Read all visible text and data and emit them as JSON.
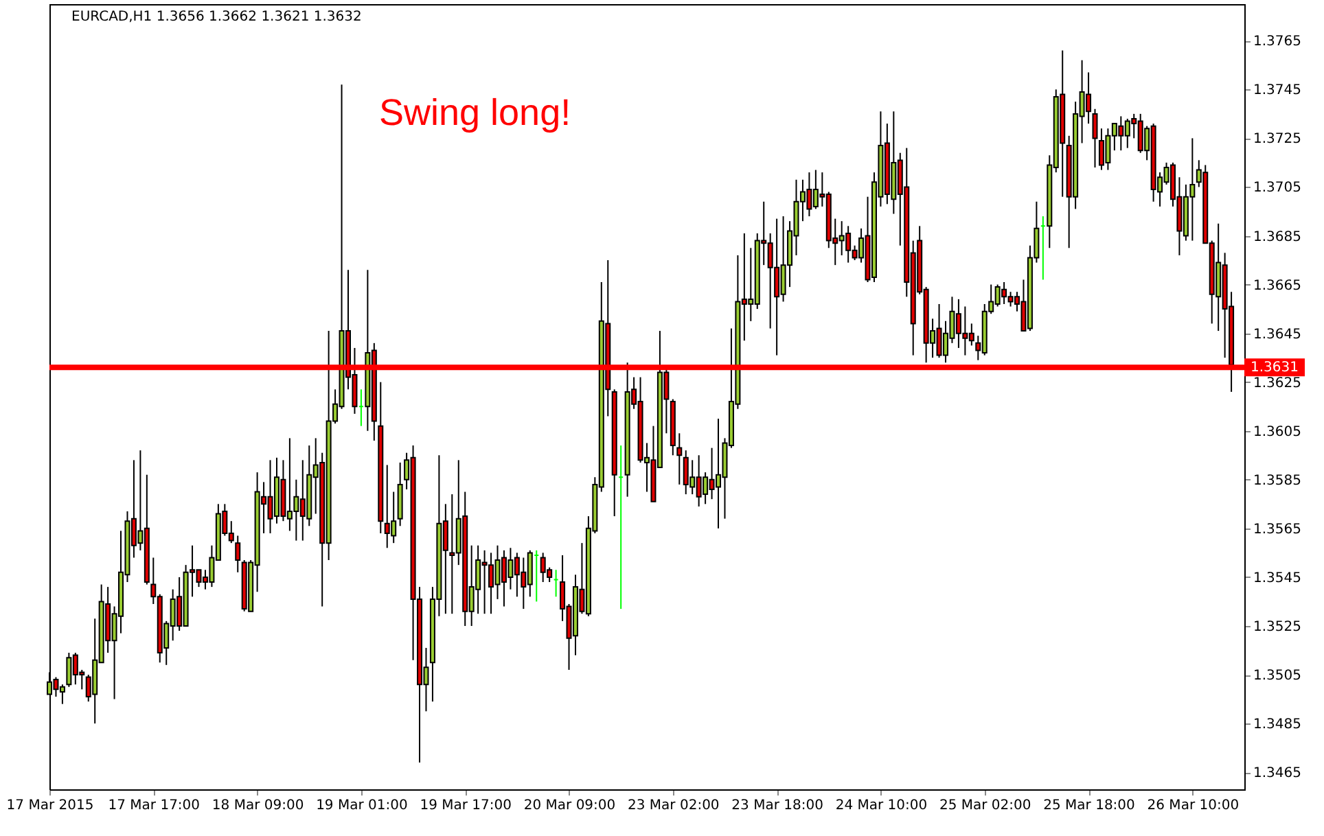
{
  "chart_data": {
    "type": "candlestick",
    "title": "EURCAD,H1  1.3656 1.3662 1.3621 1.3632",
    "categories": [
      "17 Mar 2015",
      null,
      null,
      null,
      null,
      null,
      null,
      null,
      null,
      null,
      null,
      null,
      null,
      null,
      null,
      null,
      "17 Mar 17:00",
      null,
      null,
      null,
      null,
      null,
      null,
      null,
      null,
      null,
      null,
      null,
      null,
      null,
      null,
      null,
      "18 Mar 09:00",
      null,
      null,
      null,
      null,
      null,
      null,
      null,
      null,
      null,
      null,
      null,
      null,
      null,
      null,
      null,
      "19 Mar 01:00",
      null,
      null,
      null,
      null,
      null,
      null,
      null,
      null,
      null,
      null,
      null,
      null,
      null,
      null,
      null,
      "19 Mar 17:00",
      null,
      null,
      null,
      null,
      null,
      null,
      null,
      null,
      null,
      null,
      null,
      null,
      null,
      null,
      null,
      "20 Mar 09:00",
      null,
      null,
      null,
      null,
      null,
      null,
      null,
      null,
      null,
      null,
      null,
      null,
      null,
      null,
      null,
      "23 Mar 02:00",
      null,
      null,
      null,
      null,
      null,
      null,
      null,
      null,
      null,
      null,
      null,
      null,
      null,
      null,
      null,
      "23 Mar 18:00",
      null,
      null,
      null,
      null,
      null,
      null,
      null,
      null,
      null,
      null,
      null,
      null,
      null,
      null,
      null,
      "24 Mar 10:00",
      null,
      null,
      null,
      null,
      null,
      null,
      null,
      null,
      null,
      null,
      null,
      null,
      null,
      null,
      null,
      "25 Mar 02:00",
      null,
      null,
      null,
      null,
      null,
      null,
      null,
      null,
      null,
      null,
      null,
      null,
      null,
      null,
      null,
      "25 Mar 18:00",
      null,
      null,
      null,
      null,
      null,
      null,
      null,
      null,
      null,
      null,
      null,
      null,
      null,
      null,
      null,
      "26 Mar 10:00",
      null,
      null,
      null,
      null,
      null,
      null
    ],
    "ohlc": [
      [
        1.3497,
        1.3506,
        1.3497,
        1.3502
      ],
      [
        1.3503,
        1.3504,
        1.3496,
        1.3499
      ],
      [
        1.3498,
        1.3501,
        1.3493,
        1.35
      ],
      [
        1.3501,
        1.3514,
        1.35,
        1.3512
      ],
      [
        1.3513,
        1.3514,
        1.3501,
        1.3505
      ],
      [
        1.3506,
        1.3507,
        1.3499,
        1.3505
      ],
      [
        1.3504,
        1.3505,
        1.3494,
        1.3496
      ],
      [
        1.3497,
        1.3528,
        1.3485,
        1.3511
      ],
      [
        1.351,
        1.3542,
        1.351,
        1.3535
      ],
      [
        1.3534,
        1.3541,
        1.3514,
        1.3519
      ],
      [
        1.3519,
        1.3533,
        1.3495,
        1.353
      ],
      [
        1.3529,
        1.3564,
        1.3522,
        1.3547
      ],
      [
        1.3546,
        1.3572,
        1.3543,
        1.3568
      ],
      [
        1.3569,
        1.3593,
        1.3553,
        1.3558
      ],
      [
        1.3559,
        1.3597,
        1.3556,
        1.3564
      ],
      [
        1.3565,
        1.3587,
        1.3542,
        1.3543
      ],
      [
        1.3542,
        1.3553,
        1.3534,
        1.3537
      ],
      [
        1.3537,
        1.3538,
        1.351,
        1.3514
      ],
      [
        1.3516,
        1.3527,
        1.3509,
        1.3526
      ],
      [
        1.3525,
        1.354,
        1.3519,
        1.3536
      ],
      [
        1.3537,
        1.3545,
        1.3523,
        1.3525
      ],
      [
        1.3525,
        1.355,
        1.3525,
        1.3547
      ],
      [
        1.3548,
        1.3558,
        1.3537,
        1.3547
      ],
      [
        1.3548,
        1.3548,
        1.3541,
        1.3543
      ],
      [
        1.3545,
        1.3548,
        1.354,
        1.3543
      ],
      [
        1.3543,
        1.3558,
        1.3541,
        1.3553
      ],
      [
        1.3552,
        1.3575,
        1.3552,
        1.3571
      ],
      [
        1.3572,
        1.3575,
        1.3562,
        1.3563
      ],
      [
        1.3563,
        1.3568,
        1.3559,
        1.356
      ],
      [
        1.3559,
        1.3562,
        1.3547,
        1.3552
      ],
      [
        1.3551,
        1.3552,
        1.3531,
        1.3532
      ],
      [
        1.3531,
        1.3552,
        1.3531,
        1.3551
      ],
      [
        1.355,
        1.3588,
        1.3539,
        1.358
      ],
      [
        1.3578,
        1.3584,
        1.3563,
        1.3575
      ],
      [
        1.3578,
        1.3593,
        1.3563,
        1.3569
      ],
      [
        1.357,
        1.3594,
        1.3567,
        1.3586
      ],
      [
        1.3585,
        1.3593,
        1.3568,
        1.357
      ],
      [
        1.3569,
        1.3602,
        1.3564,
        1.3572
      ],
      [
        1.3572,
        1.3585,
        1.356,
        1.3578
      ],
      [
        1.3577,
        1.3593,
        1.356,
        1.357
      ],
      [
        1.3569,
        1.3599,
        1.3566,
        1.3587
      ],
      [
        1.3586,
        1.3602,
        1.3571,
        1.3591
      ],
      [
        1.3592,
        1.3596,
        1.3533,
        1.3559
      ],
      [
        1.3559,
        1.3646,
        1.3552,
        1.3609
      ],
      [
        1.3609,
        1.3622,
        1.3608,
        1.3616
      ],
      [
        1.3615,
        1.3747,
        1.3614,
        1.3646
      ],
      [
        1.3646,
        1.3671,
        1.3622,
        1.3627
      ],
      [
        1.3628,
        1.3639,
        1.3612,
        1.3615
      ],
      [
        1.3615,
        1.3622,
        1.3607,
        1.3615
      ],
      [
        1.3615,
        1.3671,
        1.3605,
        1.3637
      ],
      [
        1.3638,
        1.3641,
        1.3601,
        1.3609
      ],
      [
        1.3607,
        1.3625,
        1.3563,
        1.3568
      ],
      [
        1.3567,
        1.3591,
        1.3557,
        1.3563
      ],
      [
        1.3562,
        1.358,
        1.3559,
        1.3568
      ],
      [
        1.3569,
        1.3592,
        1.3566,
        1.3583
      ],
      [
        1.3585,
        1.3596,
        1.3581,
        1.3593
      ],
      [
        1.3594,
        1.3599,
        1.3511,
        1.3536
      ],
      [
        1.3536,
        1.3541,
        1.3469,
        1.3501
      ],
      [
        1.3501,
        1.3516,
        1.349,
        1.3508
      ],
      [
        1.351,
        1.3541,
        1.3494,
        1.3536
      ],
      [
        1.3536,
        1.3595,
        1.3529,
        1.3567
      ],
      [
        1.3568,
        1.3575,
        1.353,
        1.3556
      ],
      [
        1.3555,
        1.3579,
        1.353,
        1.3554
      ],
      [
        1.3555,
        1.3593,
        1.355,
        1.3569
      ],
      [
        1.357,
        1.358,
        1.3525,
        1.3531
      ],
      [
        1.3531,
        1.3558,
        1.3525,
        1.3541
      ],
      [
        1.354,
        1.3558,
        1.353,
        1.3552
      ],
      [
        1.3551,
        1.3556,
        1.353,
        1.355
      ],
      [
        1.355,
        1.3555,
        1.353,
        1.3541
      ],
      [
        1.3542,
        1.3558,
        1.3536,
        1.3552
      ],
      [
        1.3553,
        1.3556,
        1.3533,
        1.3543
      ],
      [
        1.3545,
        1.3557,
        1.354,
        1.3552
      ],
      [
        1.3553,
        1.3555,
        1.3537,
        1.3546
      ],
      [
        1.3547,
        1.3553,
        1.3532,
        1.3541
      ],
      [
        1.3542,
        1.3556,
        1.3537,
        1.3555
      ],
      [
        1.3554,
        1.3556,
        1.3535,
        1.3554
      ],
      [
        1.3553,
        1.3555,
        1.3543,
        1.3547
      ],
      [
        1.3548,
        1.3549,
        1.3543,
        1.3545
      ],
      [
        1.3544,
        1.3548,
        1.3537,
        1.3544
      ],
      [
        1.3543,
        1.3554,
        1.3527,
        1.3532
      ],
      [
        1.3533,
        1.3534,
        1.3507,
        1.352
      ],
      [
        1.3521,
        1.3546,
        1.3513,
        1.3541
      ],
      [
        1.354,
        1.3559,
        1.353,
        1.3531
      ],
      [
        1.353,
        1.357,
        1.3529,
        1.3565
      ],
      [
        1.3564,
        1.3586,
        1.3563,
        1.3583
      ],
      [
        1.3582,
        1.3666,
        1.358,
        1.365
      ],
      [
        1.3649,
        1.3675,
        1.3611,
        1.3622
      ],
      [
        1.3621,
        1.3622,
        1.357,
        1.3587
      ],
      [
        1.3586,
        1.3599,
        1.3532,
        1.3586
      ],
      [
        1.3587,
        1.3633,
        1.3578,
        1.3621
      ],
      [
        1.3622,
        1.3627,
        1.3614,
        1.3616
      ],
      [
        1.3617,
        1.3627,
        1.3592,
        1.3593
      ],
      [
        1.3592,
        1.36,
        1.358,
        1.3594
      ],
      [
        1.3593,
        1.3607,
        1.3576,
        1.3576
      ],
      [
        1.359,
        1.3646,
        1.359,
        1.3629
      ],
      [
        1.3629,
        1.363,
        1.3604,
        1.3618
      ],
      [
        1.3617,
        1.3618,
        1.3595,
        1.3599
      ],
      [
        1.3598,
        1.3604,
        1.3583,
        1.3595
      ],
      [
        1.3594,
        1.3597,
        1.3579,
        1.3583
      ],
      [
        1.3582,
        1.3593,
        1.3579,
        1.3586
      ],
      [
        1.3586,
        1.3595,
        1.3574,
        1.3578
      ],
      [
        1.3579,
        1.3588,
        1.3575,
        1.3586
      ],
      [
        1.3585,
        1.3598,
        1.3577,
        1.3581
      ],
      [
        1.3582,
        1.361,
        1.3565,
        1.3587
      ],
      [
        1.3586,
        1.3602,
        1.3569,
        1.36
      ],
      [
        1.3599,
        1.3647,
        1.3598,
        1.3617
      ],
      [
        1.3616,
        1.3677,
        1.3614,
        1.3658
      ],
      [
        1.3659,
        1.3686,
        1.3642,
        1.3657
      ],
      [
        1.3657,
        1.368,
        1.365,
        1.3659
      ],
      [
        1.3657,
        1.3686,
        1.3655,
        1.3683
      ],
      [
        1.3683,
        1.3699,
        1.3673,
        1.3682
      ],
      [
        1.3682,
        1.3686,
        1.3647,
        1.3672
      ],
      [
        1.3672,
        1.3692,
        1.3636,
        1.366
      ],
      [
        1.3661,
        1.3693,
        1.3658,
        1.3673
      ],
      [
        1.3673,
        1.3691,
        1.3664,
        1.3687
      ],
      [
        1.3685,
        1.3708,
        1.3677,
        1.3699
      ],
      [
        1.3699,
        1.3708,
        1.3691,
        1.3703
      ],
      [
        1.3704,
        1.3711,
        1.3693,
        1.3696
      ],
      [
        1.3697,
        1.3712,
        1.3696,
        1.3704
      ],
      [
        1.3702,
        1.3711,
        1.3697,
        1.3701
      ],
      [
        1.3702,
        1.3703,
        1.368,
        1.3683
      ],
      [
        1.3684,
        1.3692,
        1.3673,
        1.3682
      ],
      [
        1.3683,
        1.3691,
        1.3677,
        1.3685
      ],
      [
        1.3686,
        1.3689,
        1.3674,
        1.3679
      ],
      [
        1.3679,
        1.3681,
        1.3675,
        1.3676
      ],
      [
        1.3676,
        1.3688,
        1.3674,
        1.3684
      ],
      [
        1.3685,
        1.3701,
        1.3666,
        1.3667
      ],
      [
        1.3668,
        1.3711,
        1.3666,
        1.3707
      ],
      [
        1.3701,
        1.3736,
        1.3697,
        1.3722
      ],
      [
        1.3723,
        1.3731,
        1.3698,
        1.3702
      ],
      [
        1.37,
        1.3736,
        1.3694,
        1.3715
      ],
      [
        1.3716,
        1.3719,
        1.3681,
        1.3702
      ],
      [
        1.3705,
        1.3721,
        1.366,
        1.3666
      ],
      [
        1.3678,
        1.3683,
        1.3636,
        1.3649
      ],
      [
        1.3683,
        1.3689,
        1.3661,
        1.3662
      ],
      [
        1.3663,
        1.3664,
        1.3633,
        1.3641
      ],
      [
        1.3641,
        1.3651,
        1.3635,
        1.3646
      ],
      [
        1.3647,
        1.3657,
        1.3635,
        1.3636
      ],
      [
        1.3636,
        1.365,
        1.3633,
        1.3645
      ],
      [
        1.3643,
        1.366,
        1.3641,
        1.3654
      ],
      [
        1.3653,
        1.3659,
        1.3639,
        1.3645
      ],
      [
        1.3645,
        1.3656,
        1.3636,
        1.3643
      ],
      [
        1.3645,
        1.3649,
        1.364,
        1.3642
      ],
      [
        1.3641,
        1.3644,
        1.3634,
        1.3638
      ],
      [
        1.3637,
        1.3657,
        1.3636,
        1.3654
      ],
      [
        1.3654,
        1.3665,
        1.3653,
        1.3658
      ],
      [
        1.3657,
        1.3665,
        1.3656,
        1.3664
      ],
      [
        1.3663,
        1.3666,
        1.3657,
        1.366
      ],
      [
        1.366,
        1.3662,
        1.3656,
        1.3658
      ],
      [
        1.366,
        1.3662,
        1.3654,
        1.3657
      ],
      [
        1.3658,
        1.3667,
        1.3646,
        1.3646
      ],
      [
        1.3647,
        1.3681,
        1.3646,
        1.3676
      ],
      [
        1.3676,
        1.3699,
        1.3674,
        1.3688
      ],
      [
        1.3689,
        1.3693,
        1.3667,
        1.3689
      ],
      [
        1.3689,
        1.3718,
        1.368,
        1.3714
      ],
      [
        1.3713,
        1.3745,
        1.3711,
        1.3742
      ],
      [
        1.3743,
        1.3761,
        1.3701,
        1.3723
      ],
      [
        1.3722,
        1.3726,
        1.368,
        1.3701
      ],
      [
        1.3701,
        1.374,
        1.3696,
        1.3735
      ],
      [
        1.3734,
        1.3757,
        1.3723,
        1.3744
      ],
      [
        1.3743,
        1.3752,
        1.3731,
        1.3736
      ],
      [
        1.3735,
        1.3737,
        1.3713,
        1.3725
      ],
      [
        1.3724,
        1.3729,
        1.3712,
        1.3714
      ],
      [
        1.3715,
        1.3729,
        1.3712,
        1.3726
      ],
      [
        1.3726,
        1.3731,
        1.372,
        1.3731
      ],
      [
        1.373,
        1.3734,
        1.372,
        1.3726
      ],
      [
        1.3726,
        1.3733,
        1.3721,
        1.3732
      ],
      [
        1.3733,
        1.3735,
        1.3725,
        1.3731
      ],
      [
        1.3732,
        1.3735,
        1.3719,
        1.372
      ],
      [
        1.372,
        1.373,
        1.3716,
        1.3729
      ],
      [
        1.373,
        1.3731,
        1.3699,
        1.3704
      ],
      [
        1.3703,
        1.3711,
        1.3697,
        1.3709
      ],
      [
        1.3707,
        1.3715,
        1.3706,
        1.3713
      ],
      [
        1.3714,
        1.3715,
        1.3697,
        1.37
      ],
      [
        1.3701,
        1.3709,
        1.3677,
        1.3687
      ],
      [
        1.3685,
        1.3706,
        1.3683,
        1.3701
      ],
      [
        1.3701,
        1.3725,
        1.3683,
        1.3706
      ],
      [
        1.3707,
        1.3716,
        1.3705,
        1.3712
      ],
      [
        1.3711,
        1.3714,
        1.3682,
        1.3682
      ],
      [
        1.3682,
        1.3683,
        1.3649,
        1.3661
      ],
      [
        1.366,
        1.369,
        1.3646,
        1.3674
      ],
      [
        1.3673,
        1.3678,
        1.3635,
        1.3655
      ],
      [
        1.3656,
        1.3662,
        1.3621,
        1.3632
      ]
    ],
    "colors": [
      "#9acd32",
      "#e00000",
      "#9acd32",
      "#9acd32",
      "#e00000",
      "#e00000",
      "#e00000",
      "#9acd32",
      "#9acd32",
      "#e00000",
      "#9acd32",
      "#9acd32",
      "#9acd32",
      "#e00000",
      "#9acd32",
      "#e00000",
      "#e00000",
      "#e00000",
      "#9acd32",
      "#9acd32",
      "#e00000",
      "#9acd32",
      "#e00000",
      "#e00000",
      "#e00000",
      "#9acd32",
      "#9acd32",
      "#e00000",
      "#e00000",
      "#e00000",
      "#e00000",
      "#9acd32",
      "#9acd32",
      "#e00000",
      "#e00000",
      "#9acd32",
      "#e00000",
      "#9acd32",
      "#9acd32",
      "#e00000",
      "#9acd32",
      "#9acd32",
      "#e00000",
      "#9acd32",
      "#9acd32",
      "#9acd32",
      "#e00000",
      "#e00000",
      "#00ff00",
      "#9acd32",
      "#e00000",
      "#e00000",
      "#e00000",
      "#9acd32",
      "#9acd32",
      "#9acd32",
      "#e00000",
      "#e00000",
      "#9acd32",
      "#9acd32",
      "#9acd32",
      "#e00000",
      "#e00000",
      "#9acd32",
      "#e00000",
      "#9acd32",
      "#9acd32",
      "#e00000",
      "#e00000",
      "#9acd32",
      "#e00000",
      "#9acd32",
      "#e00000",
      "#e00000",
      "#9acd32",
      "#00ff00",
      "#e00000",
      "#e00000",
      "#00ff00",
      "#e00000",
      "#e00000",
      "#9acd32",
      "#e00000",
      "#9acd32",
      "#9acd32",
      "#9acd32",
      "#e00000",
      "#e00000",
      "#00ff00",
      "#9acd32",
      "#e00000",
      "#e00000",
      "#9acd32",
      "#e00000",
      "#9acd32",
      "#e00000",
      "#e00000",
      "#e00000",
      "#e00000",
      "#9acd32",
      "#e00000",
      "#9acd32",
      "#e00000",
      "#9acd32",
      "#9acd32",
      "#9acd32",
      "#9acd32",
      "#e00000",
      "#9acd32",
      "#9acd32",
      "#e00000",
      "#e00000",
      "#e00000",
      "#9acd32",
      "#9acd32",
      "#9acd32",
      "#9acd32",
      "#e00000",
      "#9acd32",
      "#e00000",
      "#e00000",
      "#e00000",
      "#9acd32",
      "#e00000",
      "#e00000",
      "#9acd32",
      "#e00000",
      "#9acd32",
      "#9acd32",
      "#e00000",
      "#9acd32",
      "#e00000",
      "#e00000",
      "#e00000",
      "#e00000",
      "#e00000",
      "#9acd32",
      "#e00000",
      "#9acd32",
      "#9acd32",
      "#e00000",
      "#e00000",
      "#e00000",
      "#e00000",
      "#9acd32",
      "#9acd32",
      "#9acd32",
      "#e00000",
      "#e00000",
      "#e00000",
      "#e00000",
      "#9acd32",
      "#9acd32",
      "#00ff00",
      "#9acd32",
      "#9acd32",
      "#e00000",
      "#e00000",
      "#9acd32",
      "#9acd32",
      "#e00000",
      "#e00000",
      "#e00000",
      "#9acd32",
      "#9acd32",
      "#e00000",
      "#9acd32",
      "#e00000",
      "#e00000",
      "#9acd32",
      "#e00000",
      "#9acd32",
      "#9acd32",
      "#e00000",
      "#e00000",
      "#9acd32",
      "#9acd32",
      "#9acd32",
      "#e00000",
      "#e00000",
      "#9acd32",
      "#e00000",
      "#e00000"
    ],
    "ylim": [
      1.3458,
      1.378
    ],
    "yticks": [
      1.3465,
      1.3485,
      1.3505,
      1.3525,
      1.3545,
      1.3565,
      1.3585,
      1.3605,
      1.3625,
      1.3645,
      1.3665,
      1.3685,
      1.3705,
      1.3725,
      1.3745,
      1.3765
    ],
    "ref_lines": [
      {
        "axis": "y",
        "value": 1.3631,
        "label": "1.3631",
        "color": "#ff0000"
      }
    ],
    "annotations": [
      "Swing long!"
    ],
    "grid": false
  }
}
